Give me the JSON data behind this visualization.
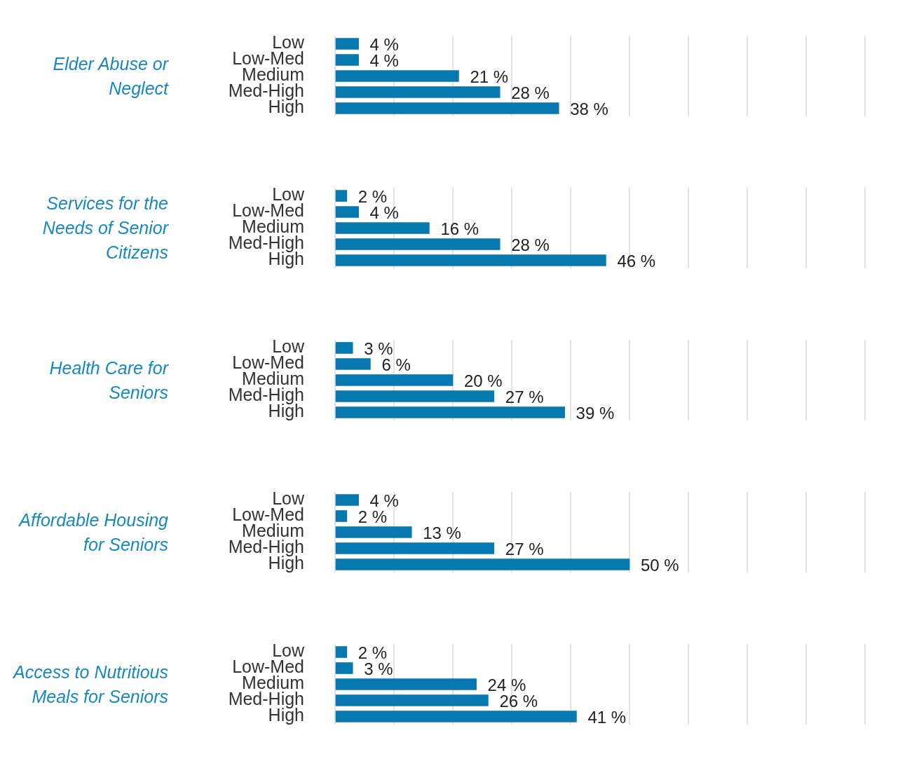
{
  "chart_data": [
    {
      "type": "bar",
      "orientation": "horizontal",
      "title": "Elder Abuse or Neglect",
      "categories": [
        "Low",
        "Low-Med",
        "Medium",
        "Med-High",
        "High"
      ],
      "values": [
        4,
        4,
        21,
        28,
        38
      ],
      "value_labels": [
        "4 %",
        "4 %",
        "21 %",
        "28 %",
        "38 %"
      ],
      "color": "#0779b0",
      "xlim": [
        0,
        90
      ],
      "xticks": [
        {
          "value": 0,
          "label": null
        },
        {
          "value": 10,
          "label": null
        },
        {
          "value": 20,
          "label": null
        },
        {
          "value": 30,
          "label": null
        },
        {
          "value": 40,
          "label": null
        },
        {
          "value": 50,
          "label": null
        },
        {
          "value": 60,
          "label": null
        },
        {
          "value": 70,
          "label": null
        },
        {
          "value": 80,
          "label": null
        },
        {
          "value": 90,
          "label": null
        }
      ],
      "grid": "x",
      "tick_labels": "y"
    },
    {
      "type": "bar",
      "orientation": "horizontal",
      "title": "Services for the Needs of Senior Citizens",
      "categories": [
        "Low",
        "Low-Med",
        "Medium",
        "Med-High",
        "High"
      ],
      "values": [
        2,
        4,
        16,
        28,
        46
      ],
      "value_labels": [
        "2 %",
        "4 %",
        "16 %",
        "28 %",
        "46 %"
      ],
      "color": "#0779b0",
      "xlim": [
        0,
        90
      ],
      "xticks": [
        {
          "value": 0,
          "label": null
        },
        {
          "value": 10,
          "label": null
        },
        {
          "value": 20,
          "label": null
        },
        {
          "value": 30,
          "label": null
        },
        {
          "value": 40,
          "label": null
        },
        {
          "value": 50,
          "label": null
        },
        {
          "value": 60,
          "label": null
        },
        {
          "value": 70,
          "label": null
        },
        {
          "value": 80,
          "label": null
        },
        {
          "value": 90,
          "label": null
        }
      ],
      "grid": "x",
      "tick_labels": "y"
    },
    {
      "type": "bar",
      "orientation": "horizontal",
      "title": "Health Care for Seniors",
      "categories": [
        "Low",
        "Low-Med",
        "Medium",
        "Med-High",
        "High"
      ],
      "values": [
        3,
        6,
        20,
        27,
        39
      ],
      "value_labels": [
        "3 %",
        "6 %",
        "20 %",
        "27 %",
        "39 %"
      ],
      "color": "#0779b0",
      "xlim": [
        0,
        90
      ],
      "xticks": [
        {
          "value": 0,
          "label": null
        },
        {
          "value": 10,
          "label": null
        },
        {
          "value": 20,
          "label": null
        },
        {
          "value": 30,
          "label": null
        },
        {
          "value": 40,
          "label": null
        },
        {
          "value": 50,
          "label": null
        },
        {
          "value": 60,
          "label": null
        },
        {
          "value": 70,
          "label": null
        },
        {
          "value": 80,
          "label": null
        },
        {
          "value": 90,
          "label": null
        }
      ],
      "grid": "x",
      "tick_labels": "y"
    },
    {
      "type": "bar",
      "orientation": "horizontal",
      "title": "Affordable Housing for Seniors",
      "categories": [
        "Low",
        "Low-Med",
        "Medium",
        "Med-High",
        "High"
      ],
      "values": [
        4,
        2,
        13,
        27,
        50
      ],
      "value_labels": [
        "4 %",
        "2 %",
        "13 %",
        "27 %",
        "50 %"
      ],
      "color": "#0779b0",
      "xlim": [
        0,
        90
      ],
      "xticks": [
        {
          "value": 0,
          "label": null
        },
        {
          "value": 10,
          "label": null
        },
        {
          "value": 20,
          "label": null
        },
        {
          "value": 30,
          "label": null
        },
        {
          "value": 40,
          "label": null
        },
        {
          "value": 50,
          "label": null
        },
        {
          "value": 60,
          "label": null
        },
        {
          "value": 70,
          "label": null
        },
        {
          "value": 80,
          "label": null
        },
        {
          "value": 90,
          "label": null
        }
      ],
      "grid": "x",
      "tick_labels": "y"
    },
    {
      "type": "bar",
      "orientation": "horizontal",
      "title": "Access to Nutritious Meals for Seniors",
      "categories": [
        "Low",
        "Low-Med",
        "Medium",
        "Med-High",
        "High"
      ],
      "values": [
        2,
        3,
        24,
        26,
        41
      ],
      "value_labels": [
        "2 %",
        "3 %",
        "24 %",
        "26 %",
        "41 %"
      ],
      "color": "#0779b0",
      "xlim": [
        0,
        90
      ],
      "xticks": [
        {
          "value": 0,
          "label": null
        },
        {
          "value": 10,
          "label": null
        },
        {
          "value": 20,
          "label": null
        },
        {
          "value": 30,
          "label": null
        },
        {
          "value": 40,
          "label": null
        },
        {
          "value": 50,
          "label": null
        },
        {
          "value": 60,
          "label": null
        },
        {
          "value": 70,
          "label": null
        },
        {
          "value": 80,
          "label": null
        },
        {
          "value": 90,
          "label": null
        }
      ],
      "grid": "x",
      "tick_labels": "y"
    }
  ]
}
